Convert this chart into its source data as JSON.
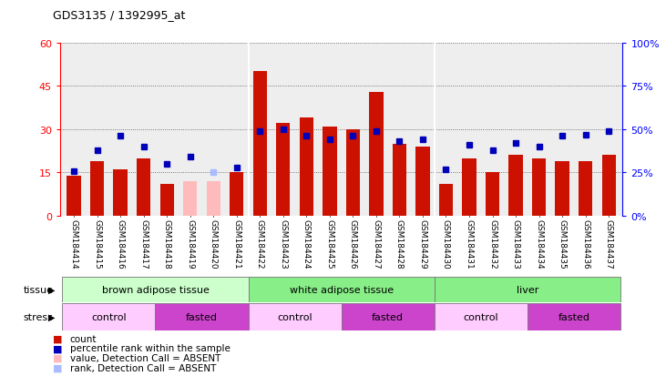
{
  "title": "GDS3135 / 1392995_at",
  "samples": [
    "GSM184414",
    "GSM184415",
    "GSM184416",
    "GSM184417",
    "GSM184418",
    "GSM184419",
    "GSM184420",
    "GSM184421",
    "GSM184422",
    "GSM184423",
    "GSM184424",
    "GSM184425",
    "GSM184426",
    "GSM184427",
    "GSM184428",
    "GSM184429",
    "GSM184430",
    "GSM184431",
    "GSM184432",
    "GSM184433",
    "GSM184434",
    "GSM184435",
    "GSM184436",
    "GSM184437"
  ],
  "bar_values": [
    14,
    19,
    16,
    20,
    11,
    12,
    12,
    15,
    50,
    32,
    34,
    31,
    30,
    43,
    25,
    24,
    11,
    20,
    15,
    21,
    20,
    19,
    19,
    21
  ],
  "bar_absent": [
    false,
    false,
    false,
    false,
    false,
    true,
    true,
    false,
    false,
    false,
    false,
    false,
    false,
    false,
    false,
    false,
    false,
    false,
    false,
    false,
    false,
    false,
    false,
    false
  ],
  "rank_values": [
    26,
    38,
    46,
    40,
    30,
    34,
    25,
    28,
    49,
    50,
    46,
    44,
    46,
    49,
    43,
    44,
    27,
    41,
    38,
    42,
    40,
    46,
    47,
    49
  ],
  "rank_absent": [
    false,
    false,
    false,
    false,
    false,
    false,
    true,
    false,
    false,
    false,
    false,
    false,
    false,
    false,
    false,
    false,
    false,
    false,
    false,
    false,
    false,
    false,
    false,
    false
  ],
  "ylim_left": [
    0,
    60
  ],
  "ylim_right": [
    0,
    100
  ],
  "yticks_left": [
    0,
    15,
    30,
    45,
    60
  ],
  "ytick_labels_left": [
    "0",
    "15",
    "30",
    "45",
    "60"
  ],
  "yticks_right": [
    0,
    25,
    50,
    75,
    100
  ],
  "ytick_labels_right": [
    "0%",
    "25%",
    "50%",
    "75%",
    "100%"
  ],
  "bar_color_normal": "#cc1100",
  "bar_color_absent": "#ffbbbb",
  "rank_color_normal": "#0000bb",
  "rank_color_absent": "#aabbff",
  "bg_color": "#eeeeee",
  "grid_color": "#555555",
  "tissue_groups": [
    {
      "label": "brown adipose tissue",
      "start": 0,
      "end": 8,
      "color": "#ccffcc"
    },
    {
      "label": "white adipose tissue",
      "start": 8,
      "end": 16,
      "color": "#88ee88"
    },
    {
      "label": "liver",
      "start": 16,
      "end": 24,
      "color": "#88ee88"
    }
  ],
  "stress_groups": [
    {
      "label": "control",
      "start": 0,
      "end": 4,
      "color": "#ffccff"
    },
    {
      "label": "fasted",
      "start": 4,
      "end": 8,
      "color": "#cc44cc"
    },
    {
      "label": "control",
      "start": 8,
      "end": 12,
      "color": "#ffccff"
    },
    {
      "label": "fasted",
      "start": 12,
      "end": 16,
      "color": "#cc44cc"
    },
    {
      "label": "control",
      "start": 16,
      "end": 20,
      "color": "#ffccff"
    },
    {
      "label": "fasted",
      "start": 20,
      "end": 24,
      "color": "#cc44cc"
    }
  ],
  "legend_items": [
    {
      "color": "#cc1100",
      "label": "count"
    },
    {
      "color": "#0000bb",
      "label": "percentile rank within the sample"
    },
    {
      "color": "#ffbbbb",
      "label": "value, Detection Call = ABSENT"
    },
    {
      "color": "#aabbff",
      "label": "rank, Detection Call = ABSENT"
    }
  ]
}
